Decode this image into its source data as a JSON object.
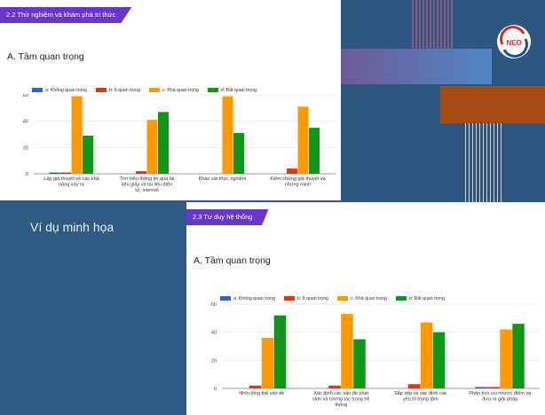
{
  "panel1": {
    "tag": "2.2 Thử nghiệm và khám phá tri thức",
    "heading": "A. Tầm quan trọng",
    "legend": [
      "a: Không quan trọng",
      "b: Ít quan trọng",
      "c: Khá quan trọng",
      "d: Rất quan trọng"
    ],
    "chart_data": {
      "type": "bar",
      "categories": [
        "Lập giả thuyết về các khả năng xảy ra",
        "Tìm hiểu thông tin qua tài liệu giấy và tài liệu điện tử, internet",
        "Khảo sát thực nghiệm",
        "Kiểm chứng giả thuyết và chứng minh"
      ],
      "series": [
        {
          "name": "a: Không quan trọng",
          "values": [
            1,
            0,
            0,
            0
          ]
        },
        {
          "name": "b: Ít quan trọng",
          "values": [
            1,
            2,
            0,
            4
          ]
        },
        {
          "name": "c: Khá quan trọng",
          "values": [
            59,
            41,
            59,
            51
          ]
        },
        {
          "name": "d: Rất quan trọng",
          "values": [
            29,
            47,
            31,
            35
          ]
        }
      ],
      "yticks": [
        "0",
        "20",
        "40",
        "60"
      ],
      "ylim": [
        0,
        60
      ]
    }
  },
  "panel2": {
    "tag": "2.3 Tư duy hệ thống",
    "heading": "A. Tầm quan trọng",
    "legend": [
      "a: Không quan trọng",
      "b: Ít quan trọng",
      "c: Khá quan trọng",
      "d: Rất quan trọng"
    ],
    "chart_data": {
      "type": "bar",
      "categories": [
        "Nhìn tổng thể vấn đề",
        "Xác định các vấn đề phát sinh và tương tác trong hệ thống",
        "Sắp xếp và xác định các yếu tố trọng tâm",
        "Phân tích ưu nhược điểm và đưa ra giải pháp"
      ],
      "series": [
        {
          "name": "a: Không quan trọng",
          "values": [
            0,
            0,
            0,
            1
          ]
        },
        {
          "name": "b: Ít quan trọng",
          "values": [
            2,
            2,
            3,
            1
          ]
        },
        {
          "name": "c: Khá quan trọng",
          "values": [
            36,
            53,
            47,
            42
          ]
        },
        {
          "name": "d: Rất quan trọng",
          "values": [
            52,
            35,
            40,
            46
          ]
        }
      ],
      "yticks": [
        "0",
        "20",
        "40",
        "60"
      ],
      "ylim": [
        0,
        60
      ]
    }
  },
  "example_label": "Ví dụ minh họa",
  "logo_text": "NEO",
  "colors": [
    "#3366cc",
    "#dc3912",
    "#ff9900",
    "#109618"
  ]
}
